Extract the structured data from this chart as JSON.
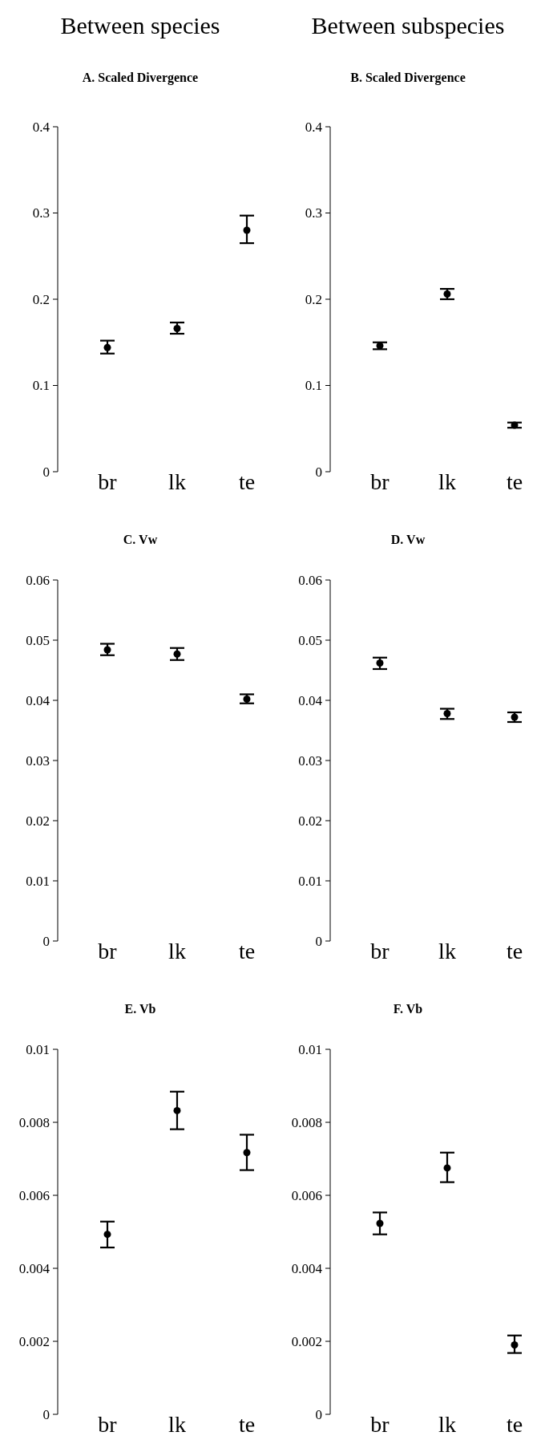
{
  "chart_data": [
    {
      "type": "scatter",
      "title": "Between species",
      "subtitle": "A. Scaled Divergence",
      "categories": [
        "br",
        "lk",
        "te"
      ],
      "marker": "circle",
      "ylim": [
        0,
        0.4
      ],
      "yticks": [
        0,
        0.1,
        0.2,
        0.3,
        0.4
      ],
      "series": [
        {
          "color": "#000000",
          "values": [
            0.144,
            0.166,
            0.28
          ],
          "errors": [
            [
              0.137,
              0.152
            ],
            [
              0.16,
              0.173
            ],
            [
              0.265,
              0.297
            ]
          ]
        }
      ]
    },
    {
      "type": "scatter",
      "title": "Between subspecies",
      "subtitle": "B. Scaled Divergence",
      "categories": [
        "br",
        "lk",
        "te"
      ],
      "marker": "circle",
      "ylim": [
        0,
        0.4
      ],
      "yticks": [
        0,
        0.1,
        0.2,
        0.3,
        0.4
      ],
      "series": [
        {
          "color": "#000000",
          "values": [
            0.146,
            0.206,
            0.054
          ],
          "errors": [
            [
              0.142,
              0.15
            ],
            [
              0.2,
              0.212
            ],
            [
              0.051,
              0.057
            ]
          ]
        }
      ]
    },
    {
      "type": "scatter",
      "title": "C. Vw",
      "categories": [
        "br",
        "lk",
        "te"
      ],
      "marker": "circle",
      "ylim": [
        0,
        0.06
      ],
      "yticks": [
        0,
        0.01,
        0.02,
        0.03,
        0.04,
        0.05,
        0.06
      ],
      "series": [
        {
          "color": "#000000",
          "values": [
            0.0484,
            0.0477,
            0.0402
          ],
          "errors": [
            [
              0.0475,
              0.0494
            ],
            [
              0.0467,
              0.0487
            ],
            [
              0.0395,
              0.041
            ]
          ]
        }
      ]
    },
    {
      "type": "scatter",
      "title": "D. Vw",
      "categories": [
        "br",
        "lk",
        "te"
      ],
      "marker": "circle",
      "ylim": [
        0,
        0.06
      ],
      "yticks": [
        0,
        0.01,
        0.02,
        0.03,
        0.04,
        0.05,
        0.06
      ],
      "series": [
        {
          "color": "#000000",
          "values": [
            0.0462,
            0.0378,
            0.0372
          ],
          "errors": [
            [
              0.0452,
              0.0471
            ],
            [
              0.0369,
              0.0386
            ],
            [
              0.0364,
              0.038
            ]
          ]
        }
      ]
    },
    {
      "type": "scatter",
      "title": "E. Vb",
      "categories": [
        "br",
        "lk",
        "te"
      ],
      "marker": "circle",
      "ylim": [
        0,
        0.01
      ],
      "yticks": [
        0,
        0.002,
        0.004,
        0.006,
        0.008,
        0.01
      ],
      "series": [
        {
          "color": "#000000",
          "values": [
            0.00493,
            0.00832,
            0.00717
          ],
          "errors": [
            [
              0.00457,
              0.00528
            ],
            [
              0.00781,
              0.00884
            ],
            [
              0.00669,
              0.00766
            ]
          ]
        }
      ]
    },
    {
      "type": "scatter",
      "title": "F. Vb",
      "categories": [
        "br",
        "lk",
        "te"
      ],
      "marker": "circle",
      "ylim": [
        0,
        0.01
      ],
      "yticks": [
        0,
        0.002,
        0.004,
        0.006,
        0.008,
        0.01
      ],
      "series": [
        {
          "color": "#000000",
          "values": [
            0.00523,
            0.00675,
            0.0019
          ],
          "errors": [
            [
              0.00493,
              0.00553
            ],
            [
              0.00636,
              0.00717
            ],
            [
              0.00168,
              0.00216
            ]
          ]
        }
      ]
    }
  ]
}
